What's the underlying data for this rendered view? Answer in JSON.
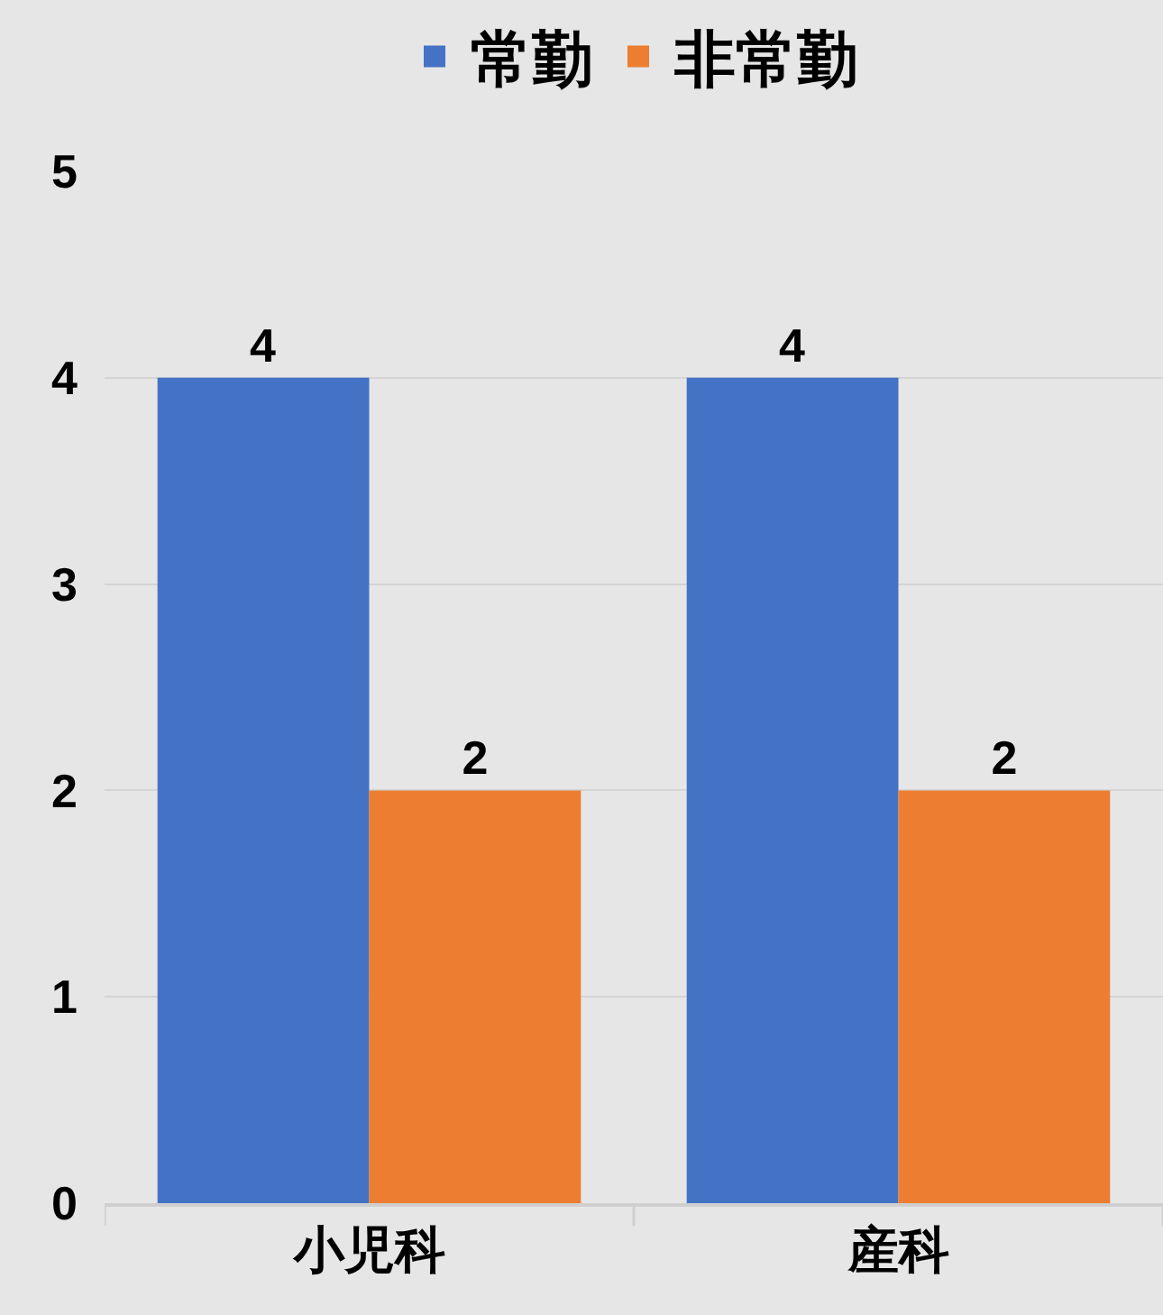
{
  "chart_data": {
    "type": "bar",
    "categories": [
      "小児科",
      "産科"
    ],
    "series": [
      {
        "name": "常勤",
        "color": "#4472c4",
        "values": [
          4,
          4
        ]
      },
      {
        "name": "非常勤",
        "color": "#ed7d31",
        "values": [
          2,
          2
        ]
      }
    ],
    "ylim": [
      0,
      5
    ],
    "yticks": [
      0,
      1,
      2,
      3,
      4,
      5
    ],
    "grid": "y",
    "legend": "top",
    "data_labels": true
  }
}
